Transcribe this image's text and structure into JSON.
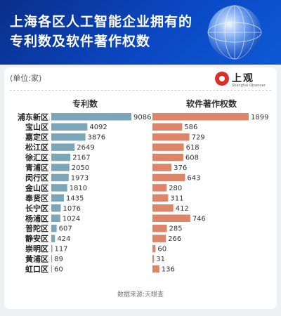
{
  "header": {
    "title_line1": "上海各区人工智能企业拥有的",
    "title_line2": "专利数及软件著作权数"
  },
  "unit_label": "(单位:家)",
  "logo": {
    "name": "上观",
    "sub": "Shanghai Observer"
  },
  "source": "数据来源:天眼查",
  "colors": {
    "patents": "#7aa6b8",
    "software": "#de8468"
  },
  "chart_data": {
    "type": "bar",
    "orientation": "horizontal",
    "categories": [
      "浦东新区",
      "宝山区",
      "嘉定区",
      "松江区",
      "徐汇区",
      "青浦区",
      "闵行区",
      "金山区",
      "奉贤区",
      "长宁区",
      "杨浦区",
      "普陀区",
      "静安区",
      "崇明区",
      "黄浦区",
      "虹口区"
    ],
    "series": [
      {
        "name": "专利数",
        "values": [
          9086,
          4092,
          3876,
          2649,
          2167,
          2050,
          1973,
          1810,
          1435,
          1076,
          1024,
          607,
          424,
          117,
          89,
          60
        ]
      },
      {
        "name": "软件著作权数",
        "values": [
          1899,
          586,
          729,
          618,
          608,
          376,
          643,
          280,
          311,
          412,
          746,
          285,
          266,
          60,
          31,
          136
        ]
      }
    ],
    "title": "上海各区人工智能企业拥有的专利数及软件著作权数"
  }
}
